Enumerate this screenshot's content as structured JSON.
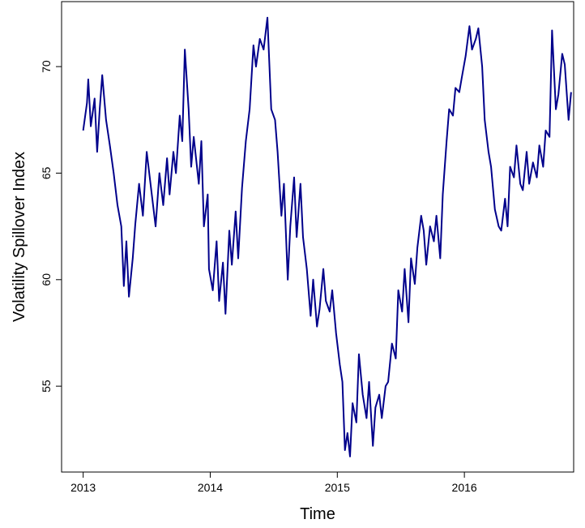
{
  "chart_data": {
    "type": "line",
    "x_label": "Time",
    "y_label": "Volatility Spillover Index",
    "xlim": [
      2012.83,
      2016.86
    ],
    "ylim": [
      50.97,
      73.05
    ],
    "xticks": [
      2013,
      2014,
      2015,
      2016
    ],
    "yticks": [
      55,
      60,
      65,
      70
    ],
    "grid": false,
    "series": [
      {
        "color": "#00008b",
        "x": [
          2013.0,
          2013.03,
          2013.04,
          2013.06,
          2013.09,
          2013.11,
          2013.13,
          2013.15,
          2013.18,
          2013.21,
          2013.24,
          2013.27,
          2013.3,
          2013.32,
          2013.34,
          2013.36,
          2013.39,
          2013.41,
          2013.44,
          2013.47,
          2013.5,
          2013.54,
          2013.57,
          2013.6,
          2013.63,
          2013.66,
          2013.68,
          2013.71,
          2013.73,
          2013.76,
          2013.78,
          2013.8,
          2013.83,
          2013.85,
          2013.87,
          2013.91,
          2013.93,
          2013.95,
          2013.98,
          2013.99,
          2014.02,
          2014.05,
          2014.07,
          2014.1,
          2014.12,
          2014.15,
          2014.17,
          2014.2,
          2014.22,
          2014.25,
          2014.28,
          2014.31,
          2014.34,
          2014.36,
          2014.39,
          2014.42,
          2014.45,
          2014.48,
          2014.51,
          2014.53,
          2014.56,
          2014.58,
          2014.61,
          2014.63,
          2014.66,
          2014.68,
          2014.71,
          2014.73,
          2014.76,
          2014.79,
          2014.81,
          2014.84,
          2014.86,
          2014.89,
          2014.91,
          2014.94,
          2014.96,
          2014.99,
          2015.02,
          2015.04,
          2015.06,
          2015.08,
          2015.1,
          2015.12,
          2015.15,
          2015.17,
          2015.2,
          2015.23,
          2015.25,
          2015.28,
          2015.3,
          2015.33,
          2015.35,
          2015.38,
          2015.4,
          2015.43,
          2015.46,
          2015.48,
          2015.51,
          2015.53,
          2015.56,
          2015.58,
          2015.61,
          2015.63,
          2015.66,
          2015.68,
          2015.7,
          2015.73,
          2015.76,
          2015.78,
          2015.81,
          2015.83,
          2015.86,
          2015.88,
          2015.91,
          2015.93,
          2015.96,
          2015.98,
          2016.01,
          2016.04,
          2016.06,
          2016.09,
          2016.11,
          2016.14,
          2016.16,
          2016.19,
          2016.21,
          2016.24,
          2016.27,
          2016.29,
          2016.32,
          2016.34,
          2016.36,
          2016.39,
          2016.41,
          2016.44,
          2016.46,
          2016.49,
          2016.51,
          2016.54,
          2016.57,
          2016.59,
          2016.62,
          2016.64,
          2016.67,
          2016.69,
          2016.72,
          2016.74,
          2016.77,
          2016.79,
          2016.82,
          2016.84
        ],
        "values": [
          67,
          68.3,
          69.4,
          67.2,
          68.5,
          66,
          68,
          69.6,
          67.5,
          66.3,
          65,
          63.5,
          62.5,
          59.7,
          61.8,
          59.2,
          61,
          62.6,
          64.5,
          63,
          66,
          64,
          62.5,
          65,
          63.5,
          65.7,
          64,
          66,
          65,
          67.7,
          66.5,
          70.8,
          68,
          65.3,
          66.7,
          64.5,
          66.5,
          62.5,
          64,
          60.5,
          59.5,
          61.8,
          59,
          60.8,
          58.4,
          62.3,
          60.7,
          63.2,
          61,
          64.3,
          66.5,
          68,
          71,
          70,
          71.3,
          70.8,
          72.3,
          68,
          67.5,
          66,
          63,
          64.5,
          60,
          62.5,
          64.8,
          62,
          64.5,
          62,
          60.5,
          58.3,
          60,
          57.8,
          58.6,
          60.5,
          59,
          58.5,
          59.5,
          57.5,
          56,
          55.2,
          52,
          52.8,
          51.7,
          54.2,
          53.3,
          56.5,
          54.6,
          53.5,
          55.2,
          52.2,
          54,
          54.6,
          53.5,
          55,
          55.2,
          57,
          56.3,
          59.5,
          58.5,
          60.5,
          58,
          61,
          59.8,
          61.5,
          63,
          62.3,
          60.7,
          62.5,
          61.8,
          63,
          61,
          64,
          66.5,
          68,
          67.7,
          69,
          68.8,
          69.5,
          70.5,
          71.9,
          70.8,
          71.3,
          71.8,
          70,
          67.5,
          66,
          65.3,
          63.3,
          62.5,
          62.3,
          63.8,
          62.5,
          65.3,
          64.8,
          66.3,
          64.5,
          64.2,
          66,
          64.5,
          65.5,
          64.8,
          66.3,
          65.3,
          67,
          66.7,
          71.7,
          68,
          68.7,
          70.6,
          70.1,
          67.5,
          68.8
        ]
      }
    ]
  }
}
